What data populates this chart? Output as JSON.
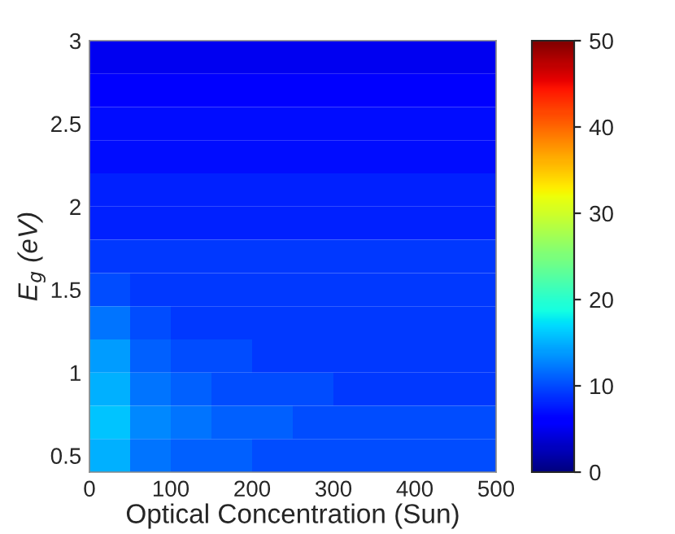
{
  "chart_data": {
    "type": "heatmap",
    "xlabel": "Optical Concentration (Sun)",
    "ylabel": "E$_{g}$ (eV)",
    "x": [
      25,
      75,
      125,
      175,
      225,
      275,
      325,
      375,
      425,
      475
    ],
    "y": [
      2.9,
      2.7,
      2.5,
      2.3,
      2.1,
      1.9,
      1.7,
      1.5,
      1.3,
      1.1,
      0.9,
      0.7,
      0.5
    ],
    "cells": [
      [
        5,
        5,
        5,
        5,
        5,
        5,
        5,
        5,
        5,
        5
      ],
      [
        6,
        6,
        6,
        6,
        6,
        6,
        6,
        6,
        6,
        6
      ],
      [
        7,
        7,
        7,
        7,
        7,
        7,
        7,
        7,
        7,
        7
      ],
      [
        7,
        7,
        7,
        7,
        7,
        7,
        7,
        7,
        7,
        7
      ],
      [
        8,
        8,
        8,
        8,
        8,
        8,
        8,
        8,
        8,
        8
      ],
      [
        8,
        8,
        8,
        8,
        8,
        8,
        8,
        8,
        8,
        8
      ],
      [
        9,
        9,
        9,
        9,
        9,
        9,
        9,
        9,
        9,
        9
      ],
      [
        10,
        9,
        9,
        9,
        9,
        9,
        9,
        9,
        9,
        9
      ],
      [
        12,
        10,
        9,
        9,
        9,
        9,
        9,
        9,
        9,
        9
      ],
      [
        14,
        11,
        10,
        10,
        9,
        9,
        9,
        9,
        9,
        9
      ],
      [
        15,
        12,
        11,
        10,
        10,
        10,
        9,
        9,
        9,
        9
      ],
      [
        16,
        13,
        12,
        11,
        11,
        10,
        10,
        10,
        10,
        10
      ],
      [
        15,
        12,
        11,
        11,
        10,
        10,
        10,
        10,
        10,
        10
      ]
    ],
    "xlim": [
      0,
      500
    ],
    "xticks": [
      0,
      100,
      200,
      300,
      400,
      500
    ],
    "ylim": [
      0.4,
      3
    ],
    "yticks": [
      0.5,
      1,
      1.5,
      2,
      2.5,
      3
    ],
    "clim": [
      0,
      50
    ],
    "cticks": [
      0,
      10,
      20,
      30,
      40,
      50
    ]
  }
}
